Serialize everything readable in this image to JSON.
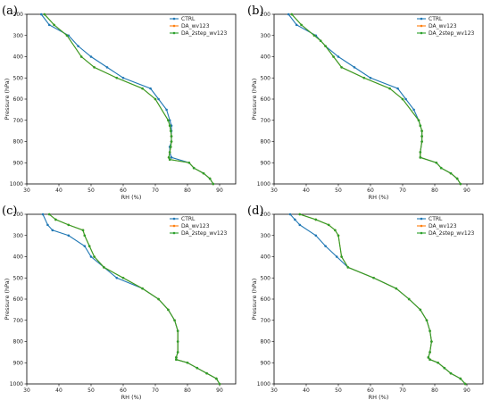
{
  "colors": {
    "CTRL": "#1f77b4",
    "DA_wv123": "#ff7f0e",
    "DA_2step_wv123": "#2ca02c"
  },
  "chart_data": [
    {
      "type": "line",
      "panel": "(a)",
      "xlabel": "RH (%)",
      "ylabel": "Pressure (hPa)",
      "xlim": [
        30,
        95
      ],
      "ylim": [
        1000,
        200
      ],
      "y_inverted": true,
      "xticks": [
        30,
        40,
        50,
        60,
        70,
        80,
        90
      ],
      "yticks": [
        200,
        300,
        400,
        500,
        600,
        700,
        800,
        900,
        1000
      ],
      "grid": false,
      "legend": "top-right",
      "series": [
        {
          "name": "CTRL",
          "x": [
            34.5,
            37,
            43,
            46,
            50,
            55,
            60,
            68.5,
            71,
            73.5,
            74.5,
            75,
            75,
            75,
            75,
            74.5,
            74.5,
            75,
            80.5,
            82,
            85,
            87,
            88
          ],
          "y": [
            200,
            250,
            300,
            350,
            400,
            450,
            500,
            550,
            600,
            650,
            700,
            725,
            750,
            775,
            800,
            825,
            850,
            875,
            900,
            925,
            950,
            975,
            1000
          ]
        },
        {
          "name": "DA_wv123",
          "x": [
            35.5,
            38.5,
            42.5,
            47,
            51,
            58,
            66,
            70,
            74,
            74.5,
            74.8,
            75,
            75,
            74.8,
            74.5,
            74.2,
            74.5,
            80.5,
            82,
            85,
            87,
            88
          ],
          "y": [
            200,
            250,
            300,
            400,
            450,
            500,
            550,
            600,
            700,
            725,
            750,
            775,
            800,
            825,
            850,
            875,
            885,
            900,
            925,
            950,
            975,
            1000
          ]
        },
        {
          "name": "DA_2step_wv123",
          "x": [
            35.5,
            38.5,
            42.5,
            47,
            51,
            58,
            66,
            70,
            74,
            74.5,
            74.8,
            75,
            75,
            74.8,
            74.5,
            74.2,
            74.5,
            80.5,
            82,
            85,
            87,
            88
          ],
          "y": [
            200,
            250,
            300,
            400,
            450,
            500,
            550,
            600,
            700,
            725,
            750,
            775,
            800,
            825,
            850,
            875,
            885,
            900,
            925,
            950,
            975,
            1000
          ]
        }
      ]
    },
    {
      "type": "line",
      "panel": "(b)",
      "xlabel": "RH (%)",
      "ylabel": "Pressure (hPa)",
      "xlim": [
        30,
        95
      ],
      "ylim": [
        1000,
        200
      ],
      "y_inverted": true,
      "xticks": [
        30,
        40,
        50,
        60,
        70,
        80,
        90
      ],
      "yticks": [
        200,
        300,
        400,
        500,
        600,
        700,
        800,
        900,
        1000
      ],
      "grid": false,
      "legend": "top-right",
      "series": [
        {
          "name": "CTRL",
          "x": [
            34.5,
            37,
            43,
            46,
            50,
            55,
            60,
            68.5,
            71,
            73.5,
            75,
            75.5,
            76,
            76,
            76,
            75.5,
            75.5,
            80.5,
            82,
            85,
            87,
            88
          ],
          "y": [
            200,
            250,
            300,
            350,
            400,
            450,
            500,
            550,
            600,
            650,
            700,
            725,
            750,
            775,
            800,
            850,
            875,
            900,
            925,
            950,
            975,
            1000
          ]
        },
        {
          "name": "DA_wv123",
          "x": [
            35.5,
            38.5,
            42.5,
            44.5,
            46,
            48.5,
            51,
            58,
            66,
            70,
            75,
            75.5,
            76,
            76,
            76,
            75.5,
            75.5,
            80.5,
            82,
            85,
            87,
            88
          ],
          "y": [
            200,
            250,
            300,
            325,
            350,
            400,
            450,
            500,
            550,
            600,
            700,
            725,
            750,
            775,
            800,
            850,
            875,
            900,
            925,
            950,
            975,
            1000
          ]
        },
        {
          "name": "DA_2step_wv123",
          "x": [
            35.5,
            38.5,
            42.5,
            44.5,
            46,
            48.5,
            51,
            58,
            66,
            70,
            75,
            75.5,
            76,
            76,
            76,
            75.5,
            75.5,
            80.5,
            82,
            85,
            87,
            88
          ],
          "y": [
            200,
            250,
            300,
            325,
            350,
            400,
            450,
            500,
            550,
            600,
            700,
            725,
            750,
            775,
            800,
            850,
            875,
            900,
            925,
            950,
            975,
            1000
          ]
        }
      ]
    },
    {
      "type": "line",
      "panel": "(c)",
      "xlabel": "RH (%)",
      "ylabel": "Pressure (hPa)",
      "xlim": [
        30,
        95
      ],
      "ylim": [
        1000,
        200
      ],
      "y_inverted": true,
      "xticks": [
        30,
        40,
        50,
        60,
        70,
        80,
        90
      ],
      "yticks": [
        200,
        300,
        400,
        500,
        600,
        700,
        800,
        900,
        1000
      ],
      "grid": false,
      "legend": "top-right",
      "series": [
        {
          "name": "CTRL",
          "x": [
            35,
            36.5,
            38,
            43,
            48,
            50,
            54,
            58,
            66,
            71,
            74,
            76,
            77,
            77,
            77,
            76.5,
            76.5,
            80,
            83,
            86,
            89,
            90
          ],
          "y": [
            200,
            250,
            275,
            300,
            350,
            400,
            450,
            500,
            550,
            600,
            650,
            700,
            750,
            800,
            850,
            875,
            885,
            900,
            925,
            950,
            975,
            1000
          ]
        },
        {
          "name": "DA_wv123",
          "x": [
            37,
            39,
            43,
            47.5,
            48,
            49.5,
            51,
            54,
            60,
            66,
            71,
            74,
            76,
            77,
            77,
            77,
            76.5,
            76.5,
            80,
            83,
            86,
            89,
            90
          ],
          "y": [
            200,
            225,
            250,
            275,
            300,
            350,
            400,
            450,
            500,
            550,
            600,
            650,
            700,
            750,
            800,
            850,
            875,
            885,
            900,
            925,
            950,
            975,
            1000
          ]
        },
        {
          "name": "DA_2step_wv123",
          "x": [
            37,
            39,
            43,
            47.5,
            48,
            49.5,
            51,
            54,
            60,
            66,
            71,
            74,
            76,
            77,
            77,
            77,
            76.5,
            76.5,
            80,
            83,
            86,
            89,
            90
          ],
          "y": [
            200,
            225,
            250,
            275,
            300,
            350,
            400,
            450,
            500,
            550,
            600,
            650,
            700,
            750,
            800,
            850,
            875,
            885,
            900,
            925,
            950,
            975,
            1000
          ]
        }
      ]
    },
    {
      "type": "line",
      "panel": "(d)",
      "xlabel": "RH (%)",
      "ylabel": "Pressure (hPa)",
      "xlim": [
        30,
        95
      ],
      "ylim": [
        1000,
        200
      ],
      "y_inverted": true,
      "xticks": [
        30,
        40,
        50,
        60,
        70,
        80,
        90
      ],
      "yticks": [
        200,
        300,
        400,
        500,
        600,
        700,
        800,
        900,
        1000
      ],
      "grid": false,
      "legend": "top-right",
      "series": [
        {
          "name": "CTRL",
          "x": [
            35,
            36.5,
            38,
            43,
            46,
            49.5,
            53,
            61,
            68,
            72,
            75.5,
            77.5,
            78.5,
            79,
            78.5,
            78,
            78.5,
            81,
            83,
            85,
            88,
            89.5
          ],
          "y": [
            200,
            225,
            250,
            300,
            350,
            400,
            450,
            500,
            550,
            600,
            650,
            700,
            750,
            800,
            850,
            875,
            885,
            900,
            925,
            950,
            975,
            1000
          ]
        },
        {
          "name": "DA_wv123",
          "x": [
            38,
            43,
            47,
            49,
            50,
            51,
            53,
            61,
            68,
            72,
            75.5,
            77.5,
            78.5,
            79,
            78.5,
            78,
            78.5,
            81,
            83,
            85,
            88,
            89.5
          ],
          "y": [
            200,
            225,
            250,
            275,
            300,
            400,
            450,
            500,
            550,
            600,
            650,
            700,
            750,
            800,
            850,
            875,
            885,
            900,
            925,
            950,
            975,
            1000
          ]
        },
        {
          "name": "DA_2step_wv123",
          "x": [
            38,
            43,
            47,
            49,
            50,
            51,
            53,
            61,
            68,
            72,
            75.5,
            77.5,
            78.5,
            79,
            78.5,
            78,
            78.5,
            81,
            83,
            85,
            88,
            89.5
          ],
          "y": [
            200,
            225,
            250,
            275,
            300,
            400,
            450,
            500,
            550,
            600,
            650,
            700,
            750,
            800,
            850,
            875,
            885,
            900,
            925,
            950,
            975,
            1000
          ]
        }
      ]
    }
  ]
}
